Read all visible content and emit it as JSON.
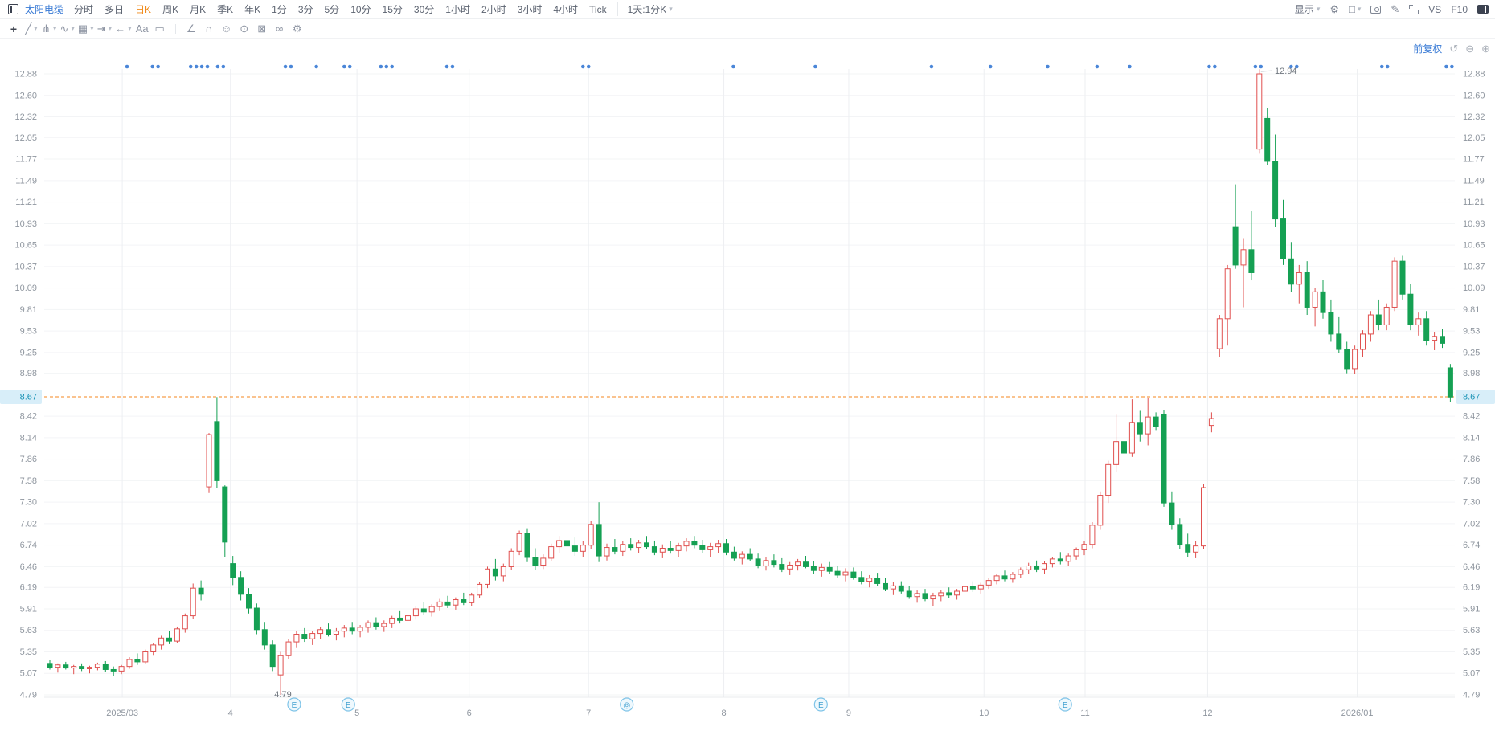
{
  "topbar": {
    "stock_name": "太阳电缆",
    "tabs": [
      "分时",
      "多日",
      "日K",
      "周K",
      "月K",
      "季K",
      "年K",
      "1分",
      "3分",
      "5分",
      "10分",
      "15分",
      "30分",
      "1小时",
      "2小时",
      "3小时",
      "4小时",
      "Tick"
    ],
    "active_tab": "日K",
    "custom_period": "1天:1分K",
    "right_items": [
      {
        "name": "display-menu",
        "label": "显示",
        "dropdown": true
      },
      {
        "name": "settings-icon",
        "glyph": "⚙"
      },
      {
        "name": "layout-icon",
        "glyph": "□",
        "dropdown": true
      },
      {
        "name": "screenshot-icon",
        "css": "ico-cam"
      },
      {
        "name": "draw-mode-icon",
        "glyph": "✎"
      },
      {
        "name": "fullscreen-icon",
        "css": "ico-exp"
      },
      {
        "name": "compare-label",
        "label": "VS"
      },
      {
        "name": "f10-label",
        "label": "F10"
      },
      {
        "name": "right-panel-icon",
        "css": "ico-panel"
      }
    ]
  },
  "drawbar": {
    "icons": [
      {
        "name": "move-icon",
        "glyph": "+",
        "first": true
      },
      {
        "name": "trend-line-icon",
        "glyph": "╱",
        "dropdown": true
      },
      {
        "name": "pitchfork-icon",
        "glyph": "⋔",
        "dropdown": true
      },
      {
        "name": "wave-icon",
        "glyph": "∿",
        "dropdown": true
      },
      {
        "name": "pattern-icon",
        "glyph": "▦",
        "dropdown": true
      },
      {
        "name": "measure-icon",
        "glyph": "⇥",
        "dropdown": true
      },
      {
        "name": "arrow-icon",
        "glyph": "←",
        "dropdown": true
      },
      {
        "name": "text-icon",
        "glyph": "Aa"
      },
      {
        "name": "comment-icon",
        "glyph": "▭"
      },
      {
        "name": "divider"
      },
      {
        "name": "angle-icon",
        "glyph": "∠"
      },
      {
        "name": "magnet-icon",
        "glyph": "∩"
      },
      {
        "name": "emoji-icon",
        "glyph": "☺"
      },
      {
        "name": "target-icon",
        "glyph": "⊙"
      },
      {
        "name": "delete-icon",
        "glyph": "⊠"
      },
      {
        "name": "link-icon",
        "glyph": "∞"
      },
      {
        "name": "draw-settings-icon",
        "glyph": "⚙"
      }
    ]
  },
  "chart_header": {
    "adjust_label": "前复权",
    "zoom_icons": [
      "↺",
      "⊖",
      "⊕"
    ]
  },
  "colors": {
    "up": "#e0504f",
    "down": "#15a053",
    "price_line": "#f5871f",
    "price_tag_bg": "#d8eef9",
    "price_tag_text": "#1691b4",
    "event_dot": "#4a86d8",
    "accent_blue": "#3a7bd5",
    "axis_text": "#8f969f",
    "grid_h": "#f3f4f6",
    "grid_v": "#edeff2",
    "marker_stroke": "#7fc4e8",
    "marker_fill": "#eef8fd",
    "marker_text": "#3e9fd0",
    "annotation": "#70777f"
  },
  "chart_data": {
    "type": "candlestick",
    "title": "太阳电缆 日K 前复权",
    "current_price": "8.67",
    "high_annotation": "12.94",
    "low_annotation": "4.79",
    "ylim": [
      4.79,
      12.88
    ],
    "price_axis_ticks": [
      "12.88",
      "12.60",
      "12.32",
      "12.05",
      "11.77",
      "11.49",
      "11.21",
      "10.93",
      "10.65",
      "10.37",
      "10.09",
      "9.81",
      "9.53",
      "9.25",
      "8.98",
      "8.42",
      "8.14",
      "7.86",
      "7.58",
      "7.30",
      "7.02",
      "6.74",
      "6.46",
      "6.19",
      "5.91",
      "5.63",
      "5.35",
      "5.07",
      "4.79"
    ],
    "x_ticks": [
      {
        "label": "2025/03",
        "index": 9.1
      },
      {
        "label": "4",
        "index": 22.7
      },
      {
        "label": "5",
        "index": 38.6
      },
      {
        "label": "6",
        "index": 52.7
      },
      {
        "label": "7",
        "index": 67.7
      },
      {
        "label": "8",
        "index": 84.7
      },
      {
        "label": "9",
        "index": 100.4
      },
      {
        "label": "10",
        "index": 117.4
      },
      {
        "label": "11",
        "index": 130.1
      },
      {
        "label": "12",
        "index": 145.5
      },
      {
        "label": "2026/01",
        "index": 164.3
      }
    ],
    "event_dots_index": [
      9.7,
      12.9,
      13.6,
      17.7,
      18.4,
      19.1,
      19.8,
      21.1,
      21.8,
      29.6,
      30.3,
      33.5,
      37.0,
      37.7,
      41.6,
      42.3,
      43.0,
      49.9,
      50.6,
      67.0,
      67.7,
      85.9,
      96.2,
      110.8,
      118.2,
      125.4,
      131.6,
      135.7,
      145.7,
      146.4,
      151.5,
      152.2,
      156.0,
      156.7,
      167.4,
      168.1,
      175.5,
      176.2
    ],
    "event_markers": [
      {
        "glyph": "E",
        "index": 30.7
      },
      {
        "glyph": "E",
        "index": 37.5
      },
      {
        "glyph": "◎",
        "index": 72.5
      },
      {
        "glyph": "E",
        "index": 96.9
      },
      {
        "glyph": "E",
        "index": 127.6
      }
    ],
    "ohlc": [
      [
        5.2,
        5.24,
        5.12,
        5.15
      ],
      [
        5.15,
        5.2,
        5.08,
        5.18
      ],
      [
        5.18,
        5.22,
        5.12,
        5.14
      ],
      [
        5.14,
        5.18,
        5.06,
        5.16
      ],
      [
        5.16,
        5.2,
        5.1,
        5.13
      ],
      [
        5.13,
        5.17,
        5.07,
        5.15
      ],
      [
        5.15,
        5.21,
        5.11,
        5.19
      ],
      [
        5.19,
        5.23,
        5.09,
        5.12
      ],
      [
        5.12,
        5.16,
        5.04,
        5.1
      ],
      [
        5.1,
        5.18,
        5.06,
        5.16
      ],
      [
        5.16,
        5.28,
        5.13,
        5.25
      ],
      [
        5.25,
        5.33,
        5.18,
        5.22
      ],
      [
        5.22,
        5.38,
        5.2,
        5.35
      ],
      [
        5.35,
        5.47,
        5.3,
        5.44
      ],
      [
        5.44,
        5.56,
        5.38,
        5.53
      ],
      [
        5.53,
        5.62,
        5.45,
        5.49
      ],
      [
        5.49,
        5.68,
        5.47,
        5.65
      ],
      [
        5.65,
        5.85,
        5.6,
        5.82
      ],
      [
        5.82,
        6.24,
        5.78,
        6.18
      ],
      [
        6.18,
        6.28,
        6.02,
        6.1
      ],
      [
        7.5,
        8.2,
        7.42,
        8.18
      ],
      [
        8.35,
        8.67,
        7.48,
        7.58
      ],
      [
        7.5,
        7.52,
        6.58,
        6.78
      ],
      [
        6.5,
        6.6,
        6.22,
        6.32
      ],
      [
        6.32,
        6.4,
        6.02,
        6.1
      ],
      [
        6.1,
        6.18,
        5.85,
        5.92
      ],
      [
        5.92,
        5.98,
        5.58,
        5.64
      ],
      [
        5.64,
        5.74,
        5.38,
        5.44
      ],
      [
        5.44,
        5.5,
        5.1,
        5.16
      ],
      [
        5.05,
        5.35,
        4.79,
        5.3
      ],
      [
        5.3,
        5.52,
        5.26,
        5.48
      ],
      [
        5.48,
        5.62,
        5.4,
        5.58
      ],
      [
        5.58,
        5.66,
        5.48,
        5.52
      ],
      [
        5.52,
        5.62,
        5.44,
        5.59
      ],
      [
        5.59,
        5.68,
        5.52,
        5.64
      ],
      [
        5.64,
        5.72,
        5.55,
        5.58
      ],
      [
        5.58,
        5.66,
        5.5,
        5.62
      ],
      [
        5.62,
        5.7,
        5.54,
        5.66
      ],
      [
        5.66,
        5.74,
        5.58,
        5.62
      ],
      [
        5.62,
        5.7,
        5.54,
        5.67
      ],
      [
        5.67,
        5.76,
        5.6,
        5.73
      ],
      [
        5.73,
        5.8,
        5.64,
        5.68
      ],
      [
        5.68,
        5.76,
        5.61,
        5.72
      ],
      [
        5.72,
        5.82,
        5.66,
        5.79
      ],
      [
        5.79,
        5.88,
        5.72,
        5.76
      ],
      [
        5.76,
        5.85,
        5.7,
        5.82
      ],
      [
        5.82,
        5.94,
        5.77,
        5.91
      ],
      [
        5.91,
        6.0,
        5.83,
        5.87
      ],
      [
        5.87,
        5.97,
        5.81,
        5.94
      ],
      [
        5.94,
        6.04,
        5.88,
        6.0
      ],
      [
        6.0,
        6.08,
        5.92,
        5.96
      ],
      [
        5.96,
        6.06,
        5.9,
        6.03
      ],
      [
        6.03,
        6.12,
        5.96,
        5.99
      ],
      [
        5.99,
        6.12,
        5.95,
        6.09
      ],
      [
        6.09,
        6.26,
        6.05,
        6.23
      ],
      [
        6.23,
        6.46,
        6.18,
        6.43
      ],
      [
        6.43,
        6.56,
        6.28,
        6.34
      ],
      [
        6.34,
        6.5,
        6.27,
        6.46
      ],
      [
        6.46,
        6.7,
        6.42,
        6.66
      ],
      [
        6.66,
        6.93,
        6.61,
        6.89
      ],
      [
        6.89,
        6.96,
        6.52,
        6.58
      ],
      [
        6.58,
        6.7,
        6.42,
        6.48
      ],
      [
        6.48,
        6.62,
        6.43,
        6.57
      ],
      [
        6.57,
        6.76,
        6.53,
        6.72
      ],
      [
        6.72,
        6.86,
        6.64,
        6.8
      ],
      [
        6.8,
        6.9,
        6.68,
        6.73
      ],
      [
        6.73,
        6.84,
        6.6,
        6.66
      ],
      [
        6.66,
        6.79,
        6.58,
        6.74
      ],
      [
        6.74,
        7.06,
        6.69,
        7.01
      ],
      [
        7.01,
        7.3,
        6.52,
        6.6
      ],
      [
        6.6,
        6.76,
        6.54,
        6.71
      ],
      [
        6.71,
        6.82,
        6.62,
        6.66
      ],
      [
        6.66,
        6.79,
        6.6,
        6.75
      ],
      [
        6.75,
        6.83,
        6.67,
        6.71
      ],
      [
        6.71,
        6.81,
        6.64,
        6.77
      ],
      [
        6.77,
        6.86,
        6.69,
        6.72
      ],
      [
        6.72,
        6.8,
        6.61,
        6.65
      ],
      [
        6.65,
        6.75,
        6.57,
        6.7
      ],
      [
        6.7,
        6.79,
        6.63,
        6.67
      ],
      [
        6.67,
        6.77,
        6.59,
        6.73
      ],
      [
        6.73,
        6.83,
        6.66,
        6.79
      ],
      [
        6.79,
        6.86,
        6.7,
        6.74
      ],
      [
        6.74,
        6.81,
        6.64,
        6.68
      ],
      [
        6.68,
        6.77,
        6.59,
        6.72
      ],
      [
        6.72,
        6.81,
        6.64,
        6.76
      ],
      [
        6.76,
        6.82,
        6.61,
        6.65
      ],
      [
        6.65,
        6.72,
        6.54,
        6.57
      ],
      [
        6.57,
        6.66,
        6.49,
        6.62
      ],
      [
        6.62,
        6.7,
        6.53,
        6.56
      ],
      [
        6.56,
        6.63,
        6.44,
        6.47
      ],
      [
        6.47,
        6.58,
        6.41,
        6.54
      ],
      [
        6.54,
        6.62,
        6.45,
        6.49
      ],
      [
        6.49,
        6.57,
        6.39,
        6.43
      ],
      [
        6.43,
        6.52,
        6.35,
        6.48
      ],
      [
        6.48,
        6.56,
        6.41,
        6.52
      ],
      [
        6.52,
        6.6,
        6.44,
        6.46
      ],
      [
        6.46,
        6.53,
        6.37,
        6.41
      ],
      [
        6.41,
        6.5,
        6.33,
        6.45
      ],
      [
        6.45,
        6.52,
        6.37,
        6.4
      ],
      [
        6.4,
        6.47,
        6.31,
        6.35
      ],
      [
        6.35,
        6.44,
        6.27,
        6.39
      ],
      [
        6.39,
        6.45,
        6.29,
        6.32
      ],
      [
        6.32,
        6.4,
        6.23,
        6.27
      ],
      [
        6.27,
        6.35,
        6.19,
        6.31
      ],
      [
        6.31,
        6.38,
        6.21,
        6.24
      ],
      [
        6.24,
        6.31,
        6.14,
        6.17
      ],
      [
        6.17,
        6.26,
        6.09,
        6.21
      ],
      [
        6.21,
        6.27,
        6.11,
        6.14
      ],
      [
        6.14,
        6.21,
        6.04,
        6.07
      ],
      [
        6.07,
        6.15,
        5.99,
        6.11
      ],
      [
        6.11,
        6.17,
        6.01,
        6.04
      ],
      [
        6.04,
        6.12,
        5.95,
        6.08
      ],
      [
        6.08,
        6.16,
        6.01,
        6.12
      ],
      [
        6.12,
        6.19,
        6.05,
        6.09
      ],
      [
        6.09,
        6.17,
        6.03,
        6.14
      ],
      [
        6.14,
        6.23,
        6.09,
        6.2
      ],
      [
        6.2,
        6.27,
        6.13,
        6.17
      ],
      [
        6.17,
        6.25,
        6.11,
        6.22
      ],
      [
        6.22,
        6.31,
        6.17,
        6.28
      ],
      [
        6.28,
        6.37,
        6.23,
        6.34
      ],
      [
        6.34,
        6.41,
        6.27,
        6.3
      ],
      [
        6.3,
        6.39,
        6.25,
        6.36
      ],
      [
        6.36,
        6.45,
        6.31,
        6.42
      ],
      [
        6.42,
        6.51,
        6.37,
        6.47
      ],
      [
        6.47,
        6.54,
        6.39,
        6.43
      ],
      [
        6.43,
        6.53,
        6.37,
        6.5
      ],
      [
        6.5,
        6.59,
        6.45,
        6.56
      ],
      [
        6.56,
        6.65,
        6.49,
        6.53
      ],
      [
        6.53,
        6.63,
        6.47,
        6.6
      ],
      [
        6.6,
        6.71,
        6.55,
        6.68
      ],
      [
        6.68,
        6.79,
        6.61,
        6.75
      ],
      [
        6.75,
        7.04,
        6.7,
        7.0
      ],
      [
        7.0,
        7.44,
        6.94,
        7.39
      ],
      [
        7.39,
        7.84,
        7.29,
        7.79
      ],
      [
        7.79,
        8.44,
        7.69,
        8.09
      ],
      [
        8.09,
        8.39,
        7.84,
        7.94
      ],
      [
        7.94,
        8.64,
        7.89,
        8.34
      ],
      [
        8.34,
        8.49,
        8.09,
        8.19
      ],
      [
        8.19,
        8.66,
        8.04,
        8.41
      ],
      [
        8.41,
        8.47,
        8.24,
        8.29
      ],
      [
        8.44,
        8.5,
        7.24,
        7.29
      ],
      [
        7.29,
        7.44,
        6.94,
        7.01
      ],
      [
        7.01,
        7.09,
        6.69,
        6.75
      ],
      [
        6.75,
        6.89,
        6.59,
        6.65
      ],
      [
        6.65,
        6.79,
        6.57,
        6.73
      ],
      [
        6.73,
        7.54,
        6.69,
        7.49
      ],
      [
        8.3,
        8.47,
        8.21,
        8.39
      ],
      [
        9.3,
        9.74,
        9.19,
        9.69
      ],
      [
        9.69,
        10.39,
        9.34,
        10.34
      ],
      [
        10.89,
        11.44,
        10.34,
        10.39
      ],
      [
        10.39,
        10.74,
        9.84,
        10.59
      ],
      [
        10.59,
        11.09,
        10.19,
        10.29
      ],
      [
        11.9,
        12.94,
        11.84,
        12.88
      ],
      [
        12.3,
        12.44,
        11.69,
        11.74
      ],
      [
        11.74,
        12.09,
        10.89,
        10.99
      ],
      [
        10.99,
        11.24,
        10.39,
        10.47
      ],
      [
        10.47,
        10.69,
        10.04,
        10.14
      ],
      [
        10.14,
        10.39,
        9.89,
        10.29
      ],
      [
        10.29,
        10.44,
        9.74,
        9.84
      ],
      [
        9.84,
        10.09,
        9.59,
        10.04
      ],
      [
        10.04,
        10.19,
        9.69,
        9.77
      ],
      [
        9.77,
        9.94,
        9.39,
        9.49
      ],
      [
        9.49,
        9.71,
        9.24,
        9.29
      ],
      [
        9.29,
        9.39,
        8.98,
        9.04
      ],
      [
        9.04,
        9.34,
        8.97,
        9.29
      ],
      [
        9.29,
        9.54,
        9.19,
        9.49
      ],
      [
        9.49,
        9.79,
        9.39,
        9.74
      ],
      [
        9.74,
        9.94,
        9.54,
        9.61
      ],
      [
        9.61,
        9.89,
        9.54,
        9.84
      ],
      [
        9.84,
        10.49,
        9.79,
        10.44
      ],
      [
        10.44,
        10.51,
        9.94,
        10.01
      ],
      [
        10.01,
        10.14,
        9.54,
        9.61
      ],
      [
        9.61,
        9.77,
        9.47,
        9.69
      ],
      [
        9.69,
        9.79,
        9.34,
        9.41
      ],
      [
        9.41,
        9.52,
        9.28,
        9.46
      ],
      [
        9.46,
        9.56,
        9.31,
        9.37
      ],
      [
        9.05,
        9.1,
        8.6,
        8.67
      ]
    ]
  }
}
